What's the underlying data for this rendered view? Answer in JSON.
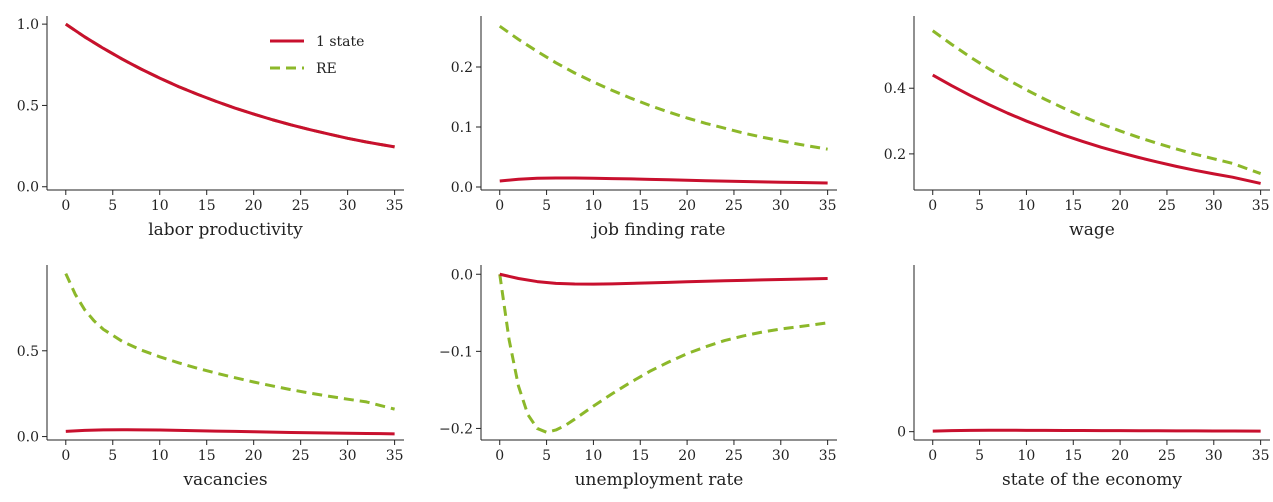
{
  "colors": {
    "one_state": "#c8102e",
    "re": "#8cb82a",
    "axis": "#222222"
  },
  "chart_data": [
    {
      "type": "line",
      "xlabel": "labor productivity",
      "xlim": [
        -2,
        36
      ],
      "ylim": [
        -0.02,
        1.05
      ],
      "xticks": [
        0,
        5,
        10,
        15,
        20,
        25,
        30,
        35
      ],
      "yticks": [
        0.0,
        0.5,
        1.0
      ],
      "ytick_labels": [
        "0.0",
        "0.5",
        "1.0"
      ],
      "legend": {
        "position": "upper-right",
        "entries": [
          "1 state",
          "RE"
        ]
      },
      "series": [
        {
          "name": "1 state",
          "style": "solid",
          "color": "#c8102e",
          "x": [
            0,
            2,
            4,
            6,
            8,
            10,
            12,
            14,
            16,
            18,
            20,
            22,
            24,
            26,
            28,
            30,
            32,
            35
          ],
          "y": [
            1.0,
            0.922,
            0.851,
            0.785,
            0.724,
            0.668,
            0.616,
            0.569,
            0.525,
            0.484,
            0.447,
            0.412,
            0.38,
            0.351,
            0.324,
            0.298,
            0.275,
            0.245
          ]
        },
        {
          "name": "RE",
          "style": "dashed",
          "color": "#8cb82a",
          "x": [
            0,
            2,
            4,
            6,
            8,
            10,
            12,
            14,
            16,
            18,
            20,
            22,
            24,
            26,
            28,
            30,
            32,
            35
          ],
          "y": [
            1.0,
            0.922,
            0.851,
            0.785,
            0.724,
            0.668,
            0.616,
            0.569,
            0.525,
            0.484,
            0.447,
            0.412,
            0.38,
            0.351,
            0.324,
            0.298,
            0.275,
            0.245
          ]
        }
      ]
    },
    {
      "type": "line",
      "xlabel": "job finding rate",
      "xlim": [
        -2,
        36
      ],
      "ylim": [
        -0.005,
        0.285
      ],
      "xticks": [
        0,
        5,
        10,
        15,
        20,
        25,
        30,
        35
      ],
      "yticks": [
        0.0,
        0.1,
        0.2
      ],
      "ytick_labels": [
        "0.0",
        "0.1",
        "0.2"
      ],
      "series": [
        {
          "name": "1 state",
          "style": "solid",
          "color": "#c8102e",
          "x": [
            0,
            2,
            4,
            6,
            8,
            10,
            12,
            14,
            16,
            18,
            20,
            22,
            24,
            26,
            28,
            30,
            32,
            35
          ],
          "y": [
            0.01,
            0.013,
            0.0145,
            0.015,
            0.015,
            0.0145,
            0.014,
            0.0135,
            0.0127,
            0.012,
            0.0113,
            0.0105,
            0.0098,
            0.0091,
            0.0085,
            0.0079,
            0.0074,
            0.0067
          ]
        },
        {
          "name": "RE",
          "style": "dashed",
          "color": "#8cb82a",
          "x": [
            0,
            2,
            4,
            6,
            8,
            10,
            12,
            14,
            16,
            18,
            20,
            22,
            24,
            26,
            28,
            30,
            32,
            35
          ],
          "y": [
            0.268,
            0.246,
            0.226,
            0.207,
            0.19,
            0.175,
            0.161,
            0.148,
            0.136,
            0.125,
            0.115,
            0.106,
            0.098,
            0.09,
            0.083,
            0.077,
            0.071,
            0.063
          ]
        }
      ]
    },
    {
      "type": "line",
      "xlabel": "wage",
      "xlim": [
        -2,
        36
      ],
      "ylim": [
        0.09,
        0.62
      ],
      "xticks": [
        0,
        5,
        10,
        15,
        20,
        25,
        30,
        35
      ],
      "yticks": [
        0.2,
        0.4
      ],
      "ytick_labels": [
        "0.2",
        "0.4"
      ],
      "series": [
        {
          "name": "1 state",
          "style": "solid",
          "color": "#c8102e",
          "x": [
            0,
            2,
            4,
            6,
            8,
            10,
            12,
            14,
            16,
            18,
            20,
            22,
            24,
            26,
            28,
            30,
            32,
            35
          ],
          "y": [
            0.44,
            0.408,
            0.378,
            0.35,
            0.324,
            0.3,
            0.278,
            0.257,
            0.238,
            0.22,
            0.204,
            0.189,
            0.175,
            0.162,
            0.15,
            0.139,
            0.129,
            0.11
          ]
        },
        {
          "name": "RE",
          "style": "dashed",
          "color": "#8cb82a",
          "x": [
            0,
            2,
            4,
            6,
            8,
            10,
            12,
            14,
            16,
            18,
            20,
            22,
            24,
            26,
            28,
            30,
            32,
            35
          ],
          "y": [
            0.575,
            0.534,
            0.495,
            0.459,
            0.426,
            0.395,
            0.366,
            0.339,
            0.314,
            0.291,
            0.27,
            0.25,
            0.232,
            0.215,
            0.199,
            0.185,
            0.171,
            0.14
          ]
        }
      ]
    },
    {
      "type": "line",
      "xlabel": "vacancies",
      "xlim": [
        -2,
        36
      ],
      "ylim": [
        -0.02,
        1.0
      ],
      "xticks": [
        0,
        5,
        10,
        15,
        20,
        25,
        30,
        35
      ],
      "yticks": [
        0.0,
        0.5
      ],
      "ytick_labels": [
        "0.0",
        "0.5"
      ],
      "series": [
        {
          "name": "1 state",
          "style": "solid",
          "color": "#c8102e",
          "x": [
            0,
            2,
            4,
            6,
            8,
            10,
            12,
            14,
            16,
            18,
            20,
            22,
            24,
            26,
            28,
            30,
            32,
            35
          ],
          "y": [
            0.03,
            0.036,
            0.039,
            0.04,
            0.039,
            0.038,
            0.036,
            0.034,
            0.032,
            0.03,
            0.028,
            0.026,
            0.024,
            0.022,
            0.021,
            0.019,
            0.018,
            0.016
          ]
        },
        {
          "name": "RE",
          "style": "dashed",
          "color": "#8cb82a",
          "x": [
            0,
            1,
            2,
            3,
            4,
            6,
            8,
            10,
            12,
            14,
            16,
            18,
            20,
            22,
            24,
            26,
            28,
            30,
            32,
            35
          ],
          "y": [
            0.95,
            0.83,
            0.74,
            0.675,
            0.625,
            0.555,
            0.505,
            0.465,
            0.43,
            0.398,
            0.37,
            0.343,
            0.318,
            0.295,
            0.273,
            0.253,
            0.235,
            0.218,
            0.202,
            0.16
          ]
        }
      ]
    },
    {
      "type": "line",
      "xlabel": "unemployment rate",
      "xlim": [
        -2,
        36
      ],
      "ylim": [
        -0.215,
        0.012
      ],
      "xticks": [
        0,
        5,
        10,
        15,
        20,
        25,
        30,
        35
      ],
      "yticks": [
        -0.2,
        -0.1,
        0.0
      ],
      "ytick_labels": [
        "−0.2",
        "−0.1",
        "0.0"
      ],
      "series": [
        {
          "name": "1 state",
          "style": "solid",
          "color": "#c8102e",
          "x": [
            0,
            2,
            4,
            6,
            8,
            10,
            12,
            14,
            16,
            18,
            20,
            22,
            24,
            26,
            28,
            30,
            32,
            35
          ],
          "y": [
            0.0,
            -0.0055,
            -0.0095,
            -0.0118,
            -0.0127,
            -0.0128,
            -0.0125,
            -0.0119,
            -0.0112,
            -0.0105,
            -0.0098,
            -0.0091,
            -0.0085,
            -0.0079,
            -0.0073,
            -0.0068,
            -0.0063,
            -0.0055
          ]
        },
        {
          "name": "RE",
          "style": "dashed",
          "color": "#8cb82a",
          "x": [
            0,
            1,
            2,
            3,
            4,
            5,
            6,
            7,
            8,
            10,
            12,
            14,
            16,
            18,
            20,
            22,
            24,
            26,
            28,
            30,
            32,
            35
          ],
          "y": [
            0.0,
            -0.085,
            -0.145,
            -0.182,
            -0.2,
            -0.205,
            -0.202,
            -0.196,
            -0.188,
            -0.171,
            -0.155,
            -0.14,
            -0.126,
            -0.114,
            -0.103,
            -0.094,
            -0.086,
            -0.08,
            -0.075,
            -0.071,
            -0.068,
            -0.063
          ]
        }
      ]
    },
    {
      "type": "line",
      "xlabel": "state of the economy",
      "xlim": [
        -2,
        36
      ],
      "ylim": [
        -0.05,
        1.0
      ],
      "xticks": [
        0,
        5,
        10,
        15,
        20,
        25,
        30,
        35
      ],
      "yticks": [
        0
      ],
      "ytick_labels": [
        "0"
      ],
      "series": [
        {
          "name": "1 state",
          "style": "solid",
          "color": "#c8102e",
          "x": [
            0,
            2,
            4,
            6,
            8,
            10,
            12,
            14,
            16,
            18,
            20,
            22,
            24,
            26,
            28,
            30,
            32,
            35
          ],
          "y": [
            0.003,
            0.006,
            0.008,
            0.0085,
            0.0085,
            0.008,
            0.0077,
            0.0073,
            0.0069,
            0.0065,
            0.0061,
            0.0057,
            0.0053,
            0.0049,
            0.0046,
            0.0043,
            0.004,
            0.0036
          ]
        }
      ]
    }
  ]
}
